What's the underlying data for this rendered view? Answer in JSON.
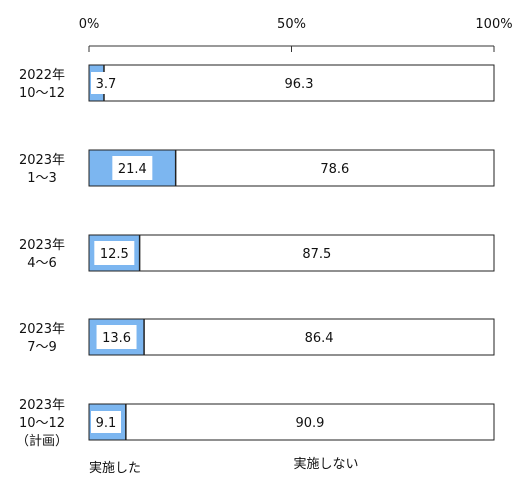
{
  "chart_data": {
    "type": "bar",
    "orientation": "horizontal",
    "stacked": true,
    "percent_scale": true,
    "categories": [
      [
        "2022年",
        "10〜12"
      ],
      [
        "2023年",
        "1〜3"
      ],
      [
        "2023年",
        "4〜6"
      ],
      [
        "2023年",
        "7〜9"
      ],
      [
        "2023年",
        "10〜12",
        "（計画）"
      ]
    ],
    "series": [
      {
        "name": "実施した",
        "color": "#7cb6f0",
        "values": [
          3.7,
          21.4,
          12.5,
          13.6,
          9.1
        ]
      },
      {
        "name": "実施しない",
        "color": "#ffffff",
        "values": [
          96.3,
          78.6,
          87.5,
          86.4,
          90.9
        ]
      }
    ],
    "x_ticks": [
      "0%",
      "50%",
      "100%"
    ],
    "xlim": [
      0,
      100
    ],
    "grid": false,
    "legend": "bottom",
    "title": "",
    "xlabel": "",
    "ylabel": ""
  }
}
